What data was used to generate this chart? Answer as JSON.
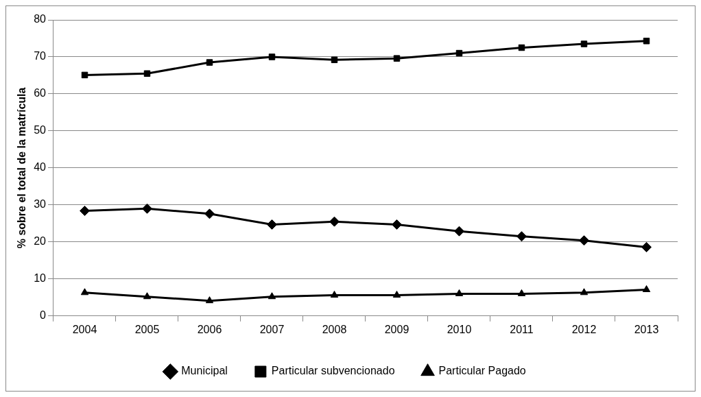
{
  "chart_data": {
    "type": "line",
    "ylabel": "% sobre el total de la matrícula",
    "categories": [
      "2004",
      "2005",
      "2006",
      "2007",
      "2008",
      "2009",
      "2010",
      "2011",
      "2012",
      "2013"
    ],
    "series": [
      {
        "name": "Municipal",
        "color": "#000000",
        "marker": "diamond",
        "values": [
          28.4,
          29,
          27.6,
          24.7,
          25.5,
          24.7,
          22.9,
          21.5,
          20.4,
          18.6
        ]
      },
      {
        "name": "Particular subvencionado",
        "color": "#000000",
        "marker": "square",
        "values": [
          65.1,
          65.5,
          68.5,
          70,
          69.2,
          69.6,
          71,
          72.5,
          73.5,
          74.3
        ]
      },
      {
        "name": "Particular Pagado",
        "color": "#000000",
        "marker": "triangle",
        "values": [
          6.3,
          5.2,
          4.1,
          5.2,
          5.6,
          5.6,
          6,
          6,
          6.3,
          7.1
        ]
      }
    ],
    "ylim": [
      0,
      80
    ],
    "yticks": [
      0,
      10,
      20,
      30,
      40,
      50,
      60,
      70,
      80
    ],
    "grid": "y",
    "legend": "bottom",
    "line_style": "solid"
  }
}
